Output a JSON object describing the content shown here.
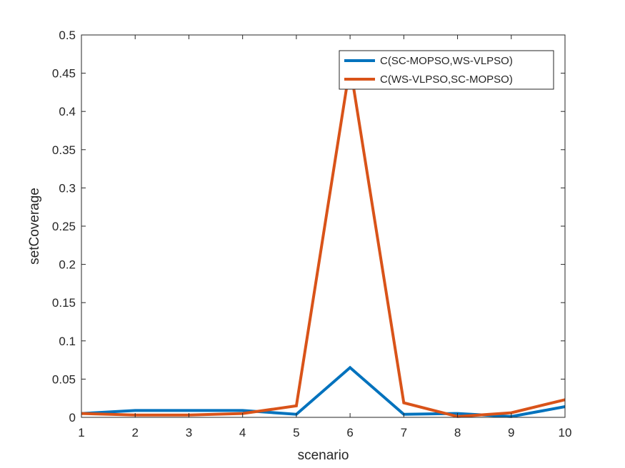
{
  "chart_data": {
    "type": "line",
    "title": "",
    "xlabel": "scenario",
    "ylabel": "setCoverage",
    "xlim": [
      1,
      10
    ],
    "ylim": [
      0,
      0.5
    ],
    "xticks": [
      1,
      2,
      3,
      4,
      5,
      6,
      7,
      8,
      9,
      10
    ],
    "xtick_labels": [
      "1",
      "2",
      "3",
      "4",
      "5",
      "6",
      "7",
      "8",
      "9",
      "10"
    ],
    "yticks": [
      0,
      0.05,
      0.1,
      0.15,
      0.2,
      0.25,
      0.3,
      0.35,
      0.4,
      0.45,
      0.5
    ],
    "ytick_labels": [
      "0",
      "0.05",
      "0.1",
      "0.15",
      "0.2",
      "0.25",
      "0.3",
      "0.35",
      "0.4",
      "0.45",
      "0.5"
    ],
    "x": [
      1,
      2,
      3,
      4,
      5,
      6,
      7,
      8,
      9,
      10
    ],
    "grid": false,
    "legend_position": "top-right",
    "series": [
      {
        "name": "C(SC-MOPSO,WS-VLPSO)",
        "color": "#0072BD",
        "values": [
          0.005,
          0.009,
          0.009,
          0.009,
          0.004,
          0.065,
          0.004,
          0.005,
          0.001,
          0.014
        ]
      },
      {
        "name": "C(WS-VLPSO,SC-MOPSO)",
        "color": "#D95319",
        "values": [
          0.005,
          0.003,
          0.003,
          0.005,
          0.015,
          0.46,
          0.019,
          0.001,
          0.006,
          0.023
        ]
      }
    ]
  }
}
